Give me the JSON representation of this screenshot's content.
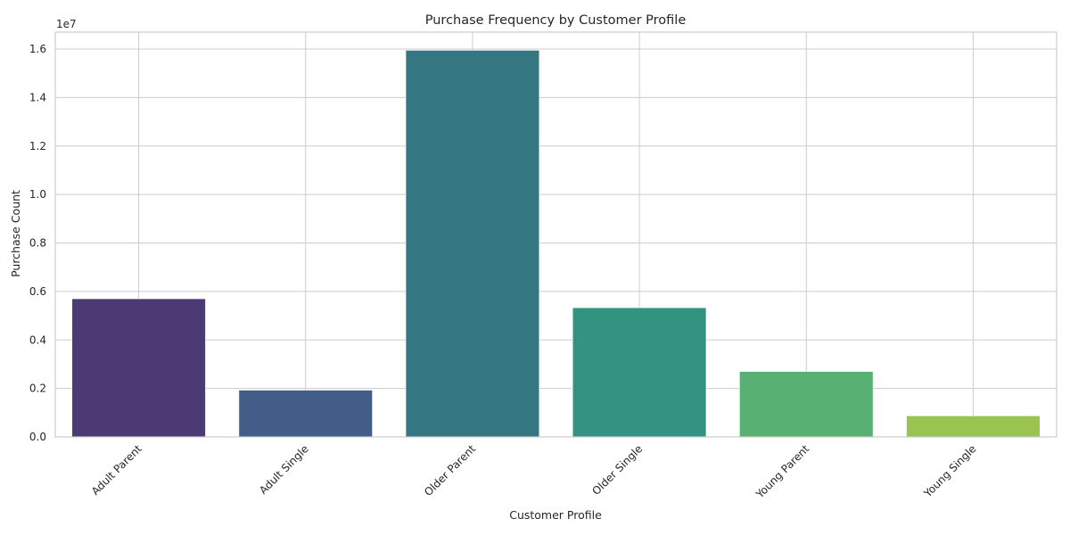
{
  "chart_data": {
    "type": "bar",
    "title": "Purchase Frequency by Customer Profile",
    "xlabel": "Customer Profile",
    "ylabel": "Purchase Count",
    "offset_label": "1e7",
    "categories": [
      "Adult Parent",
      "Adult Single",
      "Older Parent",
      "Older Single",
      "Young Parent",
      "Young Single"
    ],
    "values": [
      5700000,
      1930000,
      15950000,
      5330000,
      2700000,
      870000
    ],
    "colors": [
      "#4b3a74",
      "#415d88",
      "#357781",
      "#329380",
      "#59b073",
      "#98c44f"
    ],
    "ylim": [
      0,
      16700000
    ],
    "yticks": [
      0,
      2000000,
      4000000,
      6000000,
      8000000,
      10000000,
      12000000,
      14000000,
      16000000
    ],
    "ytick_labels": [
      "0.0",
      "0.2",
      "0.4",
      "0.6",
      "0.8",
      "1.0",
      "1.2",
      "1.4",
      "1.6"
    ],
    "grid": true,
    "legend": "none"
  }
}
